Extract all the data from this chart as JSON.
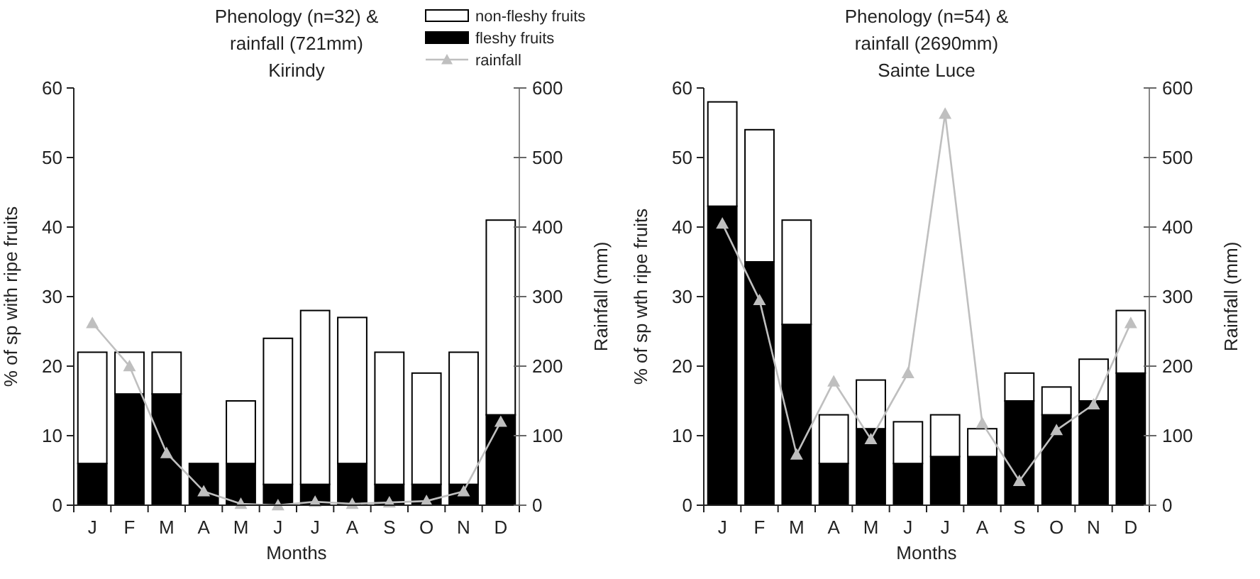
{
  "chart_data": [
    {
      "type": "bar",
      "title": "Phenology (n=32) &\nrainfall (721mm)\nKirindy",
      "xlabel": "Months",
      "ylabel": "% of sp with ripe fruits",
      "y2label": "Rainfall (mm)",
      "categories": [
        "J",
        "F",
        "M",
        "A",
        "M",
        "J",
        "J",
        "A",
        "S",
        "O",
        "N",
        "D"
      ],
      "stacked": true,
      "legend": "top right",
      "ylim": [
        0,
        60
      ],
      "yticks": [
        0,
        10,
        20,
        30,
        40,
        50,
        60
      ],
      "y2lim": [
        0,
        600
      ],
      "y2ticks": [
        0,
        100,
        200,
        300,
        400,
        500,
        600
      ],
      "series": [
        {
          "name": "fleshy fruits",
          "color": "#000000",
          "values": [
            6,
            16,
            16,
            6,
            6,
            3,
            3,
            6,
            3,
            3,
            3,
            13
          ]
        },
        {
          "name": "non-fleshy fruits",
          "color": "#ffffff",
          "values": [
            16,
            6,
            6,
            0,
            9,
            21,
            25,
            21,
            19,
            16,
            19,
            28
          ]
        },
        {
          "name": "rainfall",
          "type": "line",
          "axis": "y2",
          "color": "#bfbfbf",
          "marker": "triangle",
          "values": [
            262,
            200,
            75,
            20,
            2,
            0,
            5,
            2,
            4,
            6,
            20,
            120
          ]
        }
      ]
    },
    {
      "type": "bar",
      "title": "Phenology (n=54) &\nrainfall (2690mm)\nSainte Luce",
      "xlabel": "Months",
      "ylabel": "% of sp wth ripe fruits",
      "y2label": "Rainfall (mm)",
      "categories": [
        "J",
        "F",
        "M",
        "A",
        "M",
        "J",
        "J",
        "A",
        "S",
        "O",
        "N",
        "D"
      ],
      "stacked": true,
      "ylim": [
        0,
        60
      ],
      "yticks": [
        0,
        10,
        20,
        30,
        40,
        50,
        60
      ],
      "y2lim": [
        0,
        600
      ],
      "y2ticks": [
        0,
        100,
        200,
        300,
        400,
        500,
        600
      ],
      "series": [
        {
          "color": "#000000",
          "values": [
            43,
            35,
            26,
            6,
            11,
            6,
            7,
            7,
            15,
            13,
            15,
            19
          ]
        },
        {
          "color": "#ffffff",
          "values": [
            15,
            19,
            15,
            7,
            7,
            6,
            6,
            4,
            4,
            4,
            6,
            9
          ]
        },
        {
          "type": "line",
          "axis": "y2",
          "color": "#bfbfbf",
          "marker": "triangle",
          "values": [
            405,
            295,
            73,
            178,
            95,
            190,
            563,
            118,
            35,
            108,
            145,
            262
          ]
        }
      ]
    }
  ]
}
